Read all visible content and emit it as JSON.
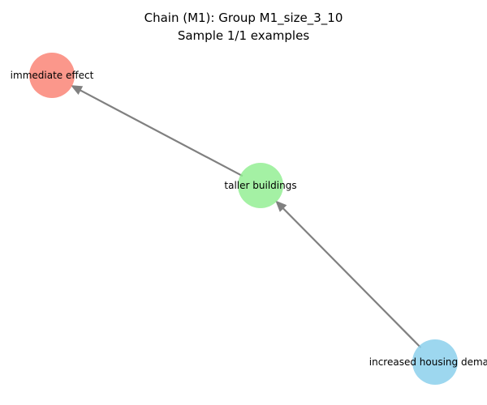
{
  "title": {
    "line1": "Chain (M1): Group M1_size_3_10",
    "line2": "Sample 1/1 examples"
  },
  "graph": {
    "nodes": [
      {
        "id": "n1",
        "name": "immediate-effect-node",
        "label": "immediate effect",
        "color": "#fa8072"
      },
      {
        "id": "n2",
        "name": "taller-buildings-node",
        "label": "taller buildings",
        "color": "#90ee90"
      },
      {
        "id": "n3",
        "name": "increased-housing-demand-node",
        "label": "increased housing demand",
        "color": "#87ceeb"
      }
    ],
    "edges": [
      {
        "from": "n3",
        "to": "n2"
      },
      {
        "from": "n2",
        "to": "n1"
      }
    ],
    "edge_color": "#808080"
  }
}
